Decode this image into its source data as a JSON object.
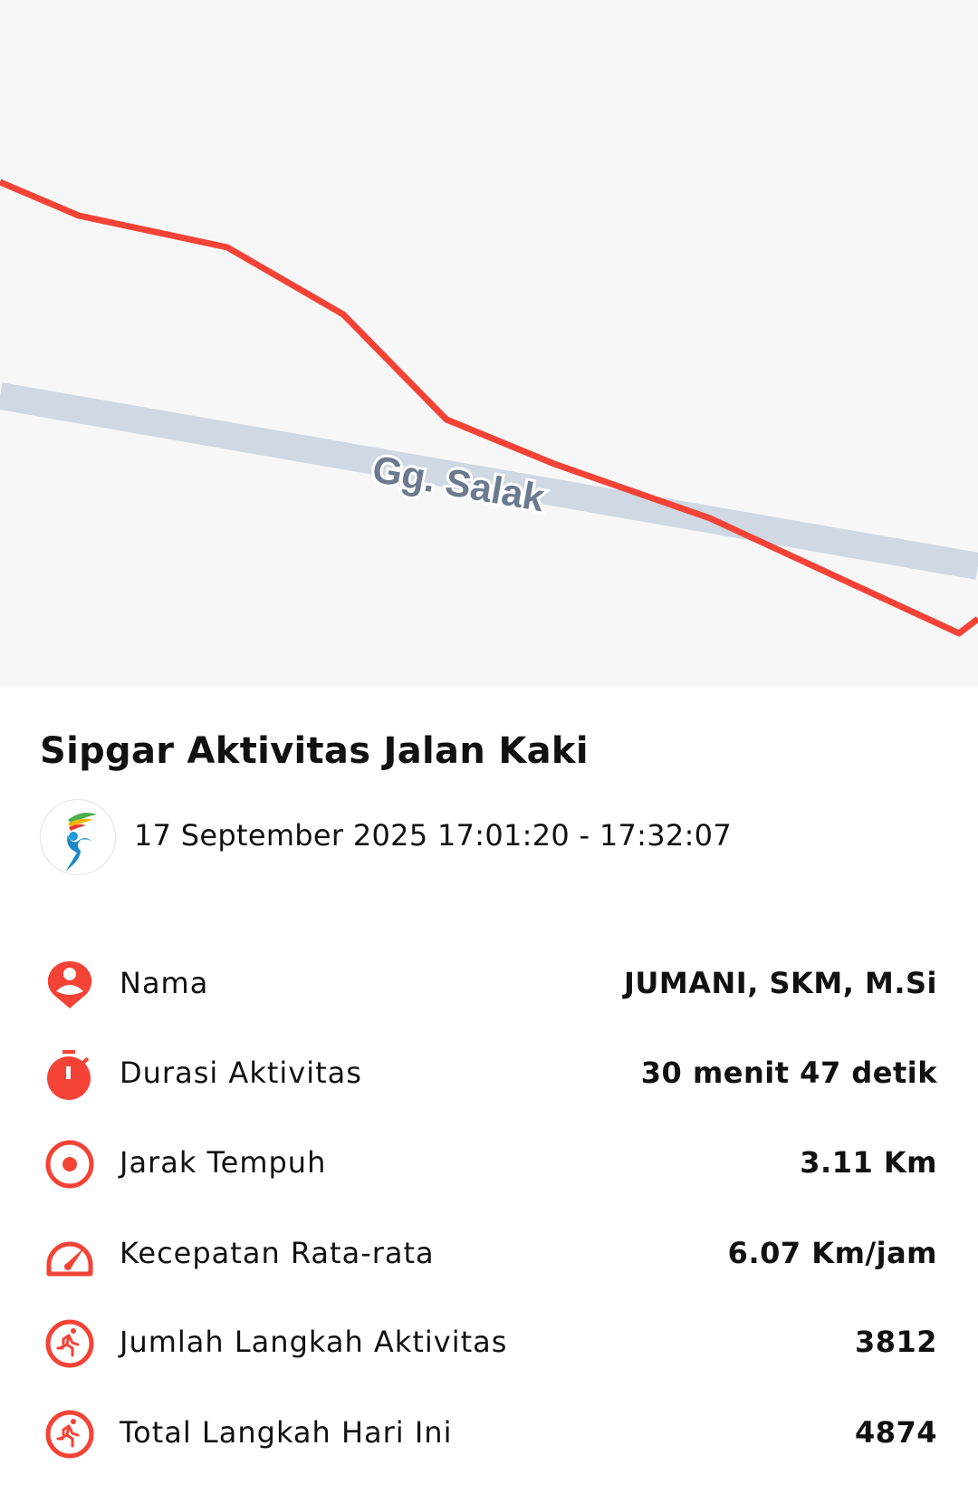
{
  "map": {
    "street_label": "Gg. Salak",
    "route_color": "#f44336",
    "road_color": "#cfd8e3"
  },
  "activity": {
    "title": "Sipgar Aktivitas Jalan Kaki",
    "date_range": "17 September 2025 17:01:20 - 17:32:07",
    "logo": "sipgar-logo"
  },
  "accent": "#f44336",
  "stats": [
    {
      "icon": "person-pin-icon",
      "label": "Nama",
      "value": "JUMANI, SKM, M.Si"
    },
    {
      "icon": "stopwatch-icon",
      "label": "Durasi Aktivitas",
      "value": "30 menit 47 detik"
    },
    {
      "icon": "target-icon",
      "label": "Jarak Tempuh",
      "value": "3.11 Km"
    },
    {
      "icon": "speedometer-icon",
      "label": "Kecepatan Rata-rata",
      "value": "6.07 Km/jam"
    },
    {
      "icon": "walking-circle-icon",
      "label": "Jumlah Langkah Aktivitas",
      "value": "3812"
    },
    {
      "icon": "walking-circle-icon",
      "label": "Total Langkah Hari Ini",
      "value": "4874"
    }
  ]
}
